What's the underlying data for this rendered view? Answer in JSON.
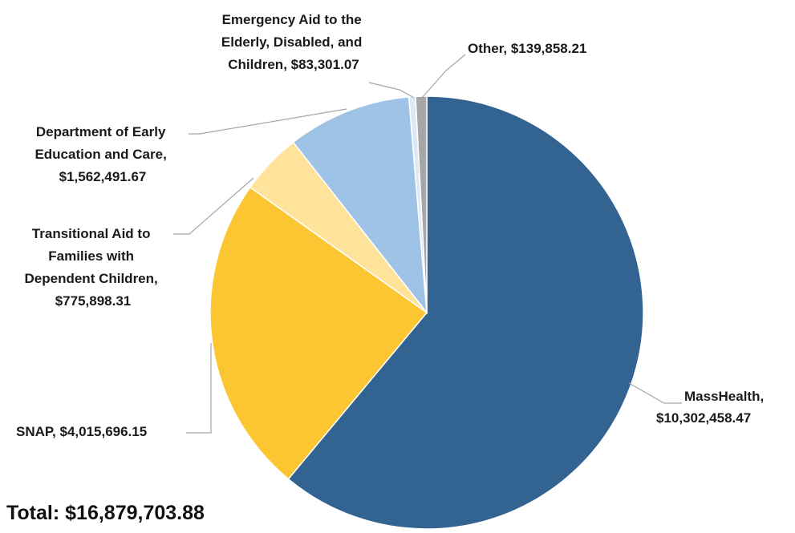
{
  "chart_data": {
    "type": "pie",
    "title": "",
    "total_label": "Total: $16,879,703.88",
    "slices": [
      {
        "label": [
          "MassHealth,",
          "$10,302,458.47"
        ],
        "value": 10302458.47,
        "color": "#336391"
      },
      {
        "label": [
          "SNAP, $4,015,696.15"
        ],
        "value": 4015696.15,
        "color": "#fbc632"
      },
      {
        "label": [
          "Transitional  Aid to",
          "Families with",
          "Dependent Children,",
          "$775,898.31"
        ],
        "value": 775898.31,
        "color": "#ffe39b"
      },
      {
        "label": [
          "Department of Early",
          "Education and Care,",
          "$1,562,491.67"
        ],
        "value": 1562491.67,
        "color": "#9fc3e6"
      },
      {
        "label": [
          "Emergency Aid to the",
          "Elderly, Disabled,  and",
          "Children, $83,301.07"
        ],
        "value": 83301.07,
        "color": "#dde8f4"
      },
      {
        "label": [
          "Other, $139,858.21"
        ],
        "value": 139858.21,
        "color": "#a6a6a6"
      }
    ]
  }
}
